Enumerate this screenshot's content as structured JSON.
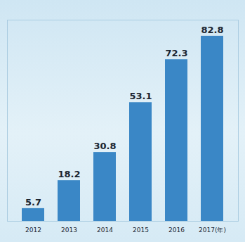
{
  "chart_data": {
    "type": "bar",
    "categories": [
      "2012",
      "2013",
      "2014",
      "2015",
      "2016",
      "2017(年)"
    ],
    "values": [
      5.7,
      18.2,
      30.8,
      53.1,
      72.3,
      82.8
    ],
    "color": "#3a87c6",
    "ylim": [
      0,
      90
    ],
    "data_labels": true,
    "tick_labels": "x"
  }
}
